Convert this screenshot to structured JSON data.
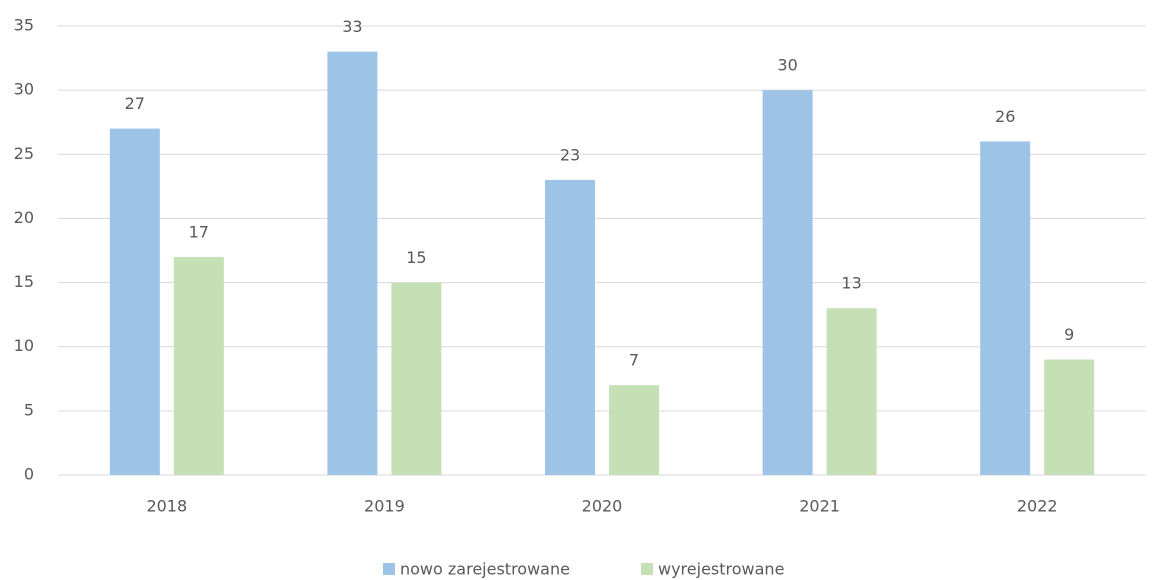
{
  "chart_data": {
    "type": "bar",
    "categories": [
      "2018",
      "2019",
      "2020",
      "2021",
      "2022"
    ],
    "series": [
      {
        "name": "nowo zarejestrowane",
        "color": "#9dc3e6",
        "values": [
          27,
          33,
          23,
          30,
          26
        ]
      },
      {
        "name": "wyrejestrowane",
        "color": "#c5e0b4",
        "values": [
          17,
          15,
          7,
          13,
          9
        ]
      }
    ],
    "ylim": [
      0,
      35
    ],
    "yticks": [
      0,
      5,
      10,
      15,
      20,
      25,
      30,
      35
    ],
    "grid": true,
    "legend": "bottom"
  }
}
